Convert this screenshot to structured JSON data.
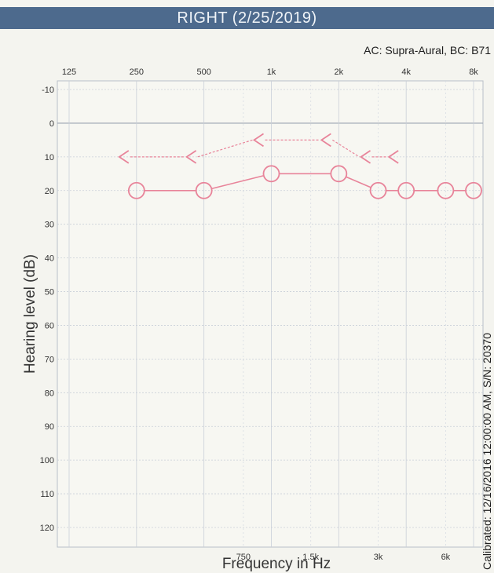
{
  "header": {
    "title": "RIGHT  (2/25/2019)"
  },
  "transducer": "AC: Supra-Aural, BC: B71",
  "calibration": "Calibrated: 12/16/2016 12:00:00 AM, S/N: 20370",
  "colors": {
    "header_bg": "#4d6a8d",
    "air_conduction": "#e8849a",
    "bone_conduction": "#e8849a",
    "grid_major": "#c9cfd8",
    "grid_minor": "#d8dce2"
  },
  "chart_data": {
    "type": "line",
    "title": "RIGHT  (2/25/2019)",
    "xlabel": "Frequency in Hz",
    "ylabel": "Hearing level (dB)",
    "x_scale": "log",
    "y_inverted": true,
    "ylim": [
      -10,
      120
    ],
    "xlim": [
      125,
      8000
    ],
    "y_ticks": [
      -10,
      0,
      10,
      20,
      30,
      40,
      50,
      60,
      70,
      80,
      90,
      100,
      110,
      120
    ],
    "x_ticks_top": [
      {
        "value": 125,
        "label": "125"
      },
      {
        "value": 250,
        "label": "250"
      },
      {
        "value": 500,
        "label": "500"
      },
      {
        "value": 1000,
        "label": "1k"
      },
      {
        "value": 2000,
        "label": "2k"
      },
      {
        "value": 4000,
        "label": "4k"
      },
      {
        "value": 8000,
        "label": "8k"
      }
    ],
    "x_ticks_bottom": [
      {
        "value": 750,
        "label": "750"
      },
      {
        "value": 1500,
        "label": "1.5k"
      },
      {
        "value": 3000,
        "label": "3k"
      },
      {
        "value": 6000,
        "label": "6k"
      }
    ],
    "grid": true,
    "series": [
      {
        "symbol": "circle",
        "x": [
          250,
          500,
          1000,
          2000,
          3000,
          4000,
          6000,
          8000
        ],
        "y": [
          20,
          20,
          15,
          15,
          20,
          20,
          20,
          20
        ]
      },
      {
        "symbol": "bracket-left",
        "x": [
          250,
          500,
          1000,
          2000,
          3000,
          4000
        ],
        "y": [
          10,
          10,
          5,
          5,
          10,
          10
        ]
      }
    ]
  }
}
